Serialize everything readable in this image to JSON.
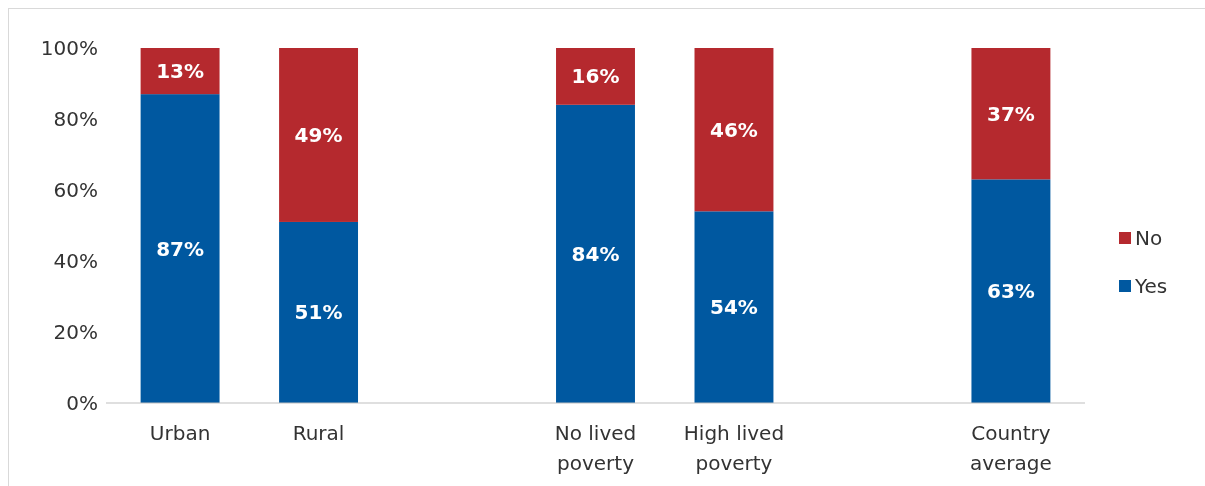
{
  "chart_data": {
    "type": "bar",
    "stacked": true,
    "categories": [
      "Urban",
      "Rural",
      null,
      "No lived poverty",
      "High lived poverty",
      null,
      "Country average"
    ],
    "series": [
      {
        "name": "Yes",
        "color": "#0058a0",
        "values": [
          87,
          51,
          null,
          84,
          54,
          null,
          63
        ],
        "value_labels": [
          "87%",
          "51%",
          null,
          "84%",
          "54%",
          null,
          "63%"
        ]
      },
      {
        "name": "No",
        "color": "#b5292e",
        "values": [
          13,
          49,
          null,
          16,
          46,
          null,
          37
        ],
        "value_labels": [
          "13%",
          "49%",
          null,
          "16%",
          "46%",
          null,
          "37%"
        ]
      }
    ],
    "ylim": [
      0,
      100
    ],
    "yticks": [
      {
        "value": 0,
        "label": "0%"
      },
      {
        "value": 20,
        "label": "20%"
      },
      {
        "value": 40,
        "label": "40%"
      },
      {
        "value": 60,
        "label": "60%"
      },
      {
        "value": 80,
        "label": "80%"
      },
      {
        "value": 100,
        "label": "100%"
      }
    ],
    "legend": "right",
    "grid": false
  }
}
